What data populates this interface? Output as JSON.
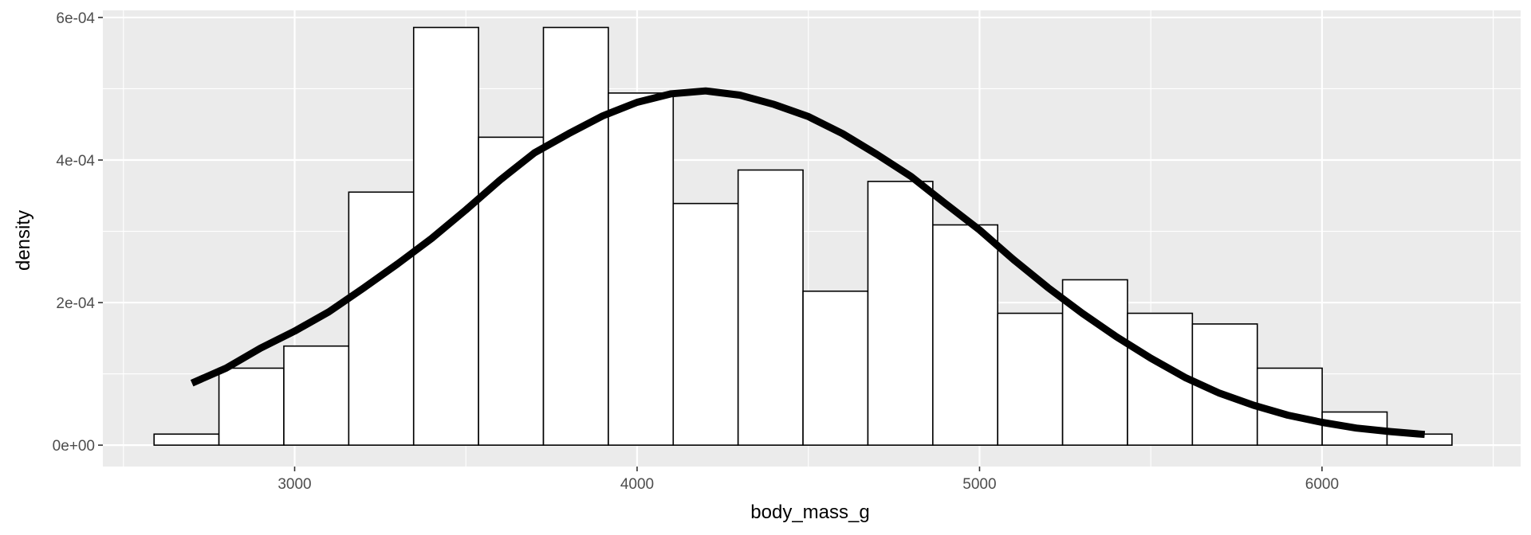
{
  "chart_data": {
    "type": "histogram",
    "xlabel": "body_mass_g",
    "ylabel": "density",
    "xlim": [
      2440,
      6580
    ],
    "ylim": [
      -3e-05,
      0.00061
    ],
    "x_ticks": [
      {
        "value": 3000,
        "label": "3000"
      },
      {
        "value": 4000,
        "label": "4000"
      },
      {
        "value": 5000,
        "label": "5000"
      },
      {
        "value": 6000,
        "label": "6000"
      }
    ],
    "y_ticks": [
      {
        "value": 0,
        "label": "0e+00"
      },
      {
        "value": 0.0002,
        "label": "2e-04"
      },
      {
        "value": 0.0004,
        "label": "4e-04"
      },
      {
        "value": 0.0006,
        "label": "6e-04"
      }
    ],
    "grid": true,
    "bins": [
      {
        "x0": 2589.5,
        "x1": 2779.0,
        "density": 1.55e-05
      },
      {
        "x0": 2779.0,
        "x1": 2968.5,
        "density": 0.000108
      },
      {
        "x0": 2968.5,
        "x1": 3158.0,
        "density": 0.000139
      },
      {
        "x0": 3158.0,
        "x1": 3347.5,
        "density": 0.000355
      },
      {
        "x0": 3347.5,
        "x1": 3537.0,
        "density": 0.000586
      },
      {
        "x0": 3537.0,
        "x1": 3726.5,
        "density": 0.000432
      },
      {
        "x0": 3726.5,
        "x1": 3916.0,
        "density": 0.000586
      },
      {
        "x0": 3916.0,
        "x1": 4105.5,
        "density": 0.000494
      },
      {
        "x0": 4105.5,
        "x1": 4295.0,
        "density": 0.000339
      },
      {
        "x0": 4295.0,
        "x1": 4484.5,
        "density": 0.000386
      },
      {
        "x0": 4484.5,
        "x1": 4674.0,
        "density": 0.000216
      },
      {
        "x0": 4674.0,
        "x1": 4863.5,
        "density": 0.00037
      },
      {
        "x0": 4863.5,
        "x1": 5053.0,
        "density": 0.000309
      },
      {
        "x0": 5053.0,
        "x1": 5242.5,
        "density": 0.000185
      },
      {
        "x0": 5242.5,
        "x1": 5432.0,
        "density": 0.000232
      },
      {
        "x0": 5432.0,
        "x1": 5621.5,
        "density": 0.000185
      },
      {
        "x0": 5621.5,
        "x1": 5811.0,
        "density": 0.00017
      },
      {
        "x0": 5811.0,
        "x1": 6000.5,
        "density": 0.000108
      },
      {
        "x0": 6000.5,
        "x1": 6190.0,
        "density": 4.65e-05
      },
      {
        "x0": 6190.0,
        "x1": 6379.5,
        "density": 1.55e-05
      }
    ],
    "density_curve": {
      "type": "line",
      "x": [
        2700,
        2800,
        2900,
        3000,
        3100,
        3200,
        3300,
        3400,
        3500,
        3600,
        3700,
        3800,
        3900,
        4000,
        4100,
        4200,
        4300,
        4400,
        4500,
        4600,
        4700,
        4800,
        4900,
        5000,
        5100,
        5200,
        5300,
        5400,
        5500,
        5600,
        5700,
        5800,
        5900,
        6000,
        6100,
        6200,
        6300
      ],
      "y": [
        8.7e-05,
        0.000108,
        0.000136,
        0.00016,
        0.000187,
        0.00022,
        0.000254,
        0.00029,
        0.00033,
        0.000372,
        0.00041,
        0.000437,
        0.000462,
        0.000481,
        0.000493,
        0.000497,
        0.000491,
        0.000478,
        0.000461,
        0.000437,
        0.000408,
        0.000377,
        0.000339,
        0.000302,
        0.00026,
        0.000221,
        0.000185,
        0.000152,
        0.000122,
        9.5e-05,
        7.3e-05,
        5.6e-05,
        4.2e-05,
        3.2e-05,
        2.4e-05,
        1.9e-05,
        1.5e-05
      ]
    }
  },
  "colors": {
    "panel_background": "#ebebeb",
    "grid_major": "#ffffff",
    "bar_fill": "#ffffff",
    "bar_stroke": "#000000",
    "curve": "#000000"
  }
}
